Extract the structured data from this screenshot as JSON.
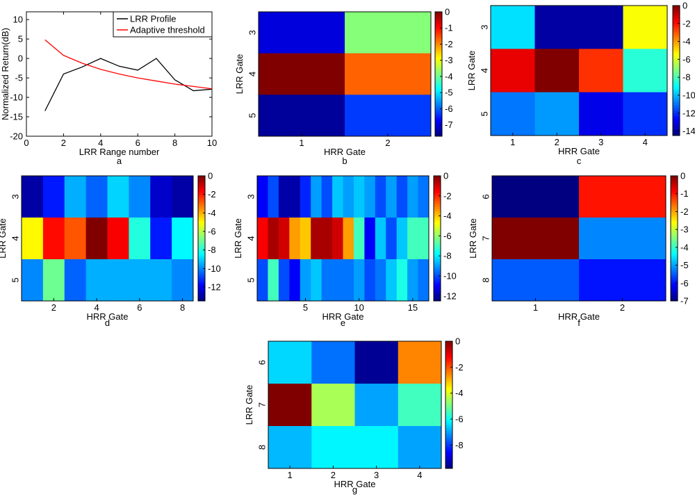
{
  "chart_data": [
    {
      "id": "a",
      "type": "line",
      "caption": "a",
      "xlabel": "LRR Range number",
      "ylabel": "Normalized Return(dB)",
      "xlim": [
        0,
        10
      ],
      "ylim": [
        -20,
        12
      ],
      "xticks": [
        "0",
        "2",
        "4",
        "6",
        "8",
        "10"
      ],
      "xtick_values": [
        0,
        2,
        4,
        6,
        8,
        10
      ],
      "yticks": [
        "-20",
        "-15",
        "-10",
        "-5",
        "0",
        "5",
        "10"
      ],
      "ytick_values": [
        -20,
        -15,
        -10,
        -5,
        0,
        5,
        10
      ],
      "legend": [
        "LRR Profile",
        "Adaptive threshold"
      ],
      "series": [
        {
          "name": "LRR Profile",
          "color": "#000000",
          "x": [
            1,
            2,
            3,
            4,
            5,
            6,
            7,
            8,
            9,
            10
          ],
          "y": [
            -13.5,
            -4,
            -2.2,
            0,
            -2,
            -3,
            0,
            -5.5,
            -8.3,
            -7.9
          ]
        },
        {
          "name": "Adaptive threshold",
          "color": "#ff0000",
          "x": [
            1,
            2,
            3,
            4,
            5,
            6,
            7,
            8,
            9,
            10
          ],
          "y": [
            4.8,
            0.8,
            -1.2,
            -2.8,
            -4.0,
            -5.0,
            -5.8,
            -6.6,
            -7.2,
            -7.8
          ]
        }
      ]
    },
    {
      "id": "b",
      "type": "heatmap",
      "caption": "b",
      "xlabel": "HRR Gate",
      "ylabel": "LRR Gate",
      "rows": [
        "3",
        "4",
        "5"
      ],
      "xticks": [
        "1",
        "2"
      ],
      "xtick_values": [
        1,
        2
      ],
      "x_count": 2,
      "colorbar_ticks": [
        "0",
        "-1",
        "-2",
        "-3",
        "-4",
        "-5",
        "-6",
        "-7"
      ],
      "colorbar_tick_values": [
        0,
        -1,
        -2,
        -3,
        -4,
        -5,
        -6,
        -7
      ],
      "clim": [
        -7.7,
        0
      ],
      "values": [
        [
          -7,
          -3.8
        ],
        [
          0,
          -1.7
        ],
        [
          -7.5,
          -6.3
        ]
      ]
    },
    {
      "id": "c",
      "type": "heatmap",
      "caption": "c",
      "xlabel": "HRR Gate",
      "ylabel": "LRR Gate",
      "rows": [
        "3",
        "4",
        "5"
      ],
      "xticks": [
        "1",
        "2",
        "3",
        "4"
      ],
      "xtick_values": [
        1,
        2,
        3,
        4
      ],
      "x_count": 4,
      "colorbar_ticks": [
        "0",
        "-2",
        "-4",
        "-6",
        "-8",
        "-10",
        "-12",
        "-14"
      ],
      "colorbar_tick_values": [
        0,
        -2,
        -4,
        -6,
        -8,
        -10,
        -12,
        -14
      ],
      "clim": [
        -14.5,
        0
      ],
      "values": [
        [
          -9.5,
          -14,
          -14,
          -5.5
        ],
        [
          -1.5,
          0,
          -2.5,
          -8.5
        ],
        [
          -11,
          -10.5,
          -13,
          -12
        ]
      ]
    },
    {
      "id": "d",
      "type": "heatmap",
      "caption": "d",
      "xlabel": "HRR Gate",
      "ylabel": "LRR Gate",
      "rows": [
        "3",
        "4",
        "5"
      ],
      "xticks": [
        "2",
        "4",
        "6",
        "8"
      ],
      "xtick_values": [
        2,
        4,
        6,
        8
      ],
      "x_count": 8,
      "colorbar_ticks": [
        "0",
        "-2",
        "-4",
        "-6",
        "-8",
        "-10",
        "-12"
      ],
      "colorbar_tick_values": [
        0,
        -2,
        -4,
        -6,
        -8,
        -10,
        -12
      ],
      "clim": [
        -13.5,
        0
      ],
      "values": [
        [
          -13,
          -11.5,
          -9.5,
          -10.5,
          -9,
          -10,
          -12.5,
          -13
        ],
        [
          -5,
          -1.8,
          -2.8,
          0,
          -1.6,
          -8,
          -11.5,
          -8.5
        ],
        [
          -10,
          -7,
          -10.5,
          -9.5,
          -9.5,
          -9.5,
          -9.5,
          -10
        ]
      ]
    },
    {
      "id": "e",
      "type": "heatmap",
      "caption": "e",
      "xlabel": "HRR Gate",
      "ylabel": "LRR Gate",
      "rows": [
        "3",
        "4",
        "5"
      ],
      "xticks": [
        "5",
        "10",
        "15"
      ],
      "xtick_values": [
        5,
        10,
        15
      ],
      "x_count": 16,
      "colorbar_ticks": [
        "0",
        "-2",
        "-4",
        "-6",
        "-8",
        "-10",
        "-12"
      ],
      "colorbar_tick_values": [
        0,
        -2,
        -4,
        -6,
        -8,
        -10,
        -12
      ],
      "clim": [
        -12.5,
        0
      ],
      "values": [
        [
          -11,
          -10,
          -12,
          -12,
          -10.5,
          -9,
          -10,
          -8.5,
          -9,
          -8.5,
          -9,
          -10,
          -9,
          -10,
          -9,
          -9.5
        ],
        [
          -1.5,
          -0.5,
          -1,
          -3.5,
          -4,
          -0.5,
          -0.5,
          -1,
          -3.5,
          -7,
          -11,
          -8.5,
          -10,
          -8.5,
          -7,
          -7
        ],
        [
          -10,
          -7,
          -10,
          -11,
          -9,
          -8.5,
          -9.5,
          -9.5,
          -9.5,
          -9,
          -10,
          -9.5,
          -8.5,
          -7.5,
          -9,
          -9.5
        ]
      ]
    },
    {
      "id": "f",
      "type": "heatmap",
      "caption": "f",
      "xlabel": "HRR Gate",
      "ylabel": "LRR Gate",
      "rows": [
        "6",
        "7",
        "8"
      ],
      "xticks": [
        "1",
        "2"
      ],
      "xtick_values": [
        1,
        2
      ],
      "x_count": 2,
      "colorbar_ticks": [
        "0",
        "-1",
        "-2",
        "-3",
        "-4",
        "-5",
        "-6",
        "-7"
      ],
      "colorbar_tick_values": [
        0,
        -1,
        -2,
        -3,
        -4,
        -5,
        -6,
        -7
      ],
      "clim": [
        -7,
        0
      ],
      "values": [
        [
          -7,
          -1
        ],
        [
          0,
          -5.2
        ],
        [
          -5.5,
          -6
        ]
      ]
    },
    {
      "id": "g",
      "type": "heatmap",
      "caption": "g",
      "xlabel": "HRR Gate",
      "ylabel": "LRR Gate",
      "rows": [
        "6",
        "7",
        "8"
      ],
      "xticks": [
        "1",
        "2",
        "3",
        "4"
      ],
      "xtick_values": [
        1,
        2,
        3,
        4
      ],
      "x_count": 4,
      "colorbar_ticks": [
        "0",
        "-2",
        "-4",
        "-6",
        "-8"
      ],
      "colorbar_tick_values": [
        0,
        -2,
        -4,
        -6,
        -8
      ],
      "clim": [
        -9.8,
        0
      ],
      "values": [
        [
          -6.5,
          -7.5,
          -9.6,
          -2.5
        ],
        [
          0,
          -4.5,
          -7,
          -5.5
        ],
        [
          -6.8,
          -6.2,
          -6.2,
          -7
        ]
      ]
    }
  ]
}
